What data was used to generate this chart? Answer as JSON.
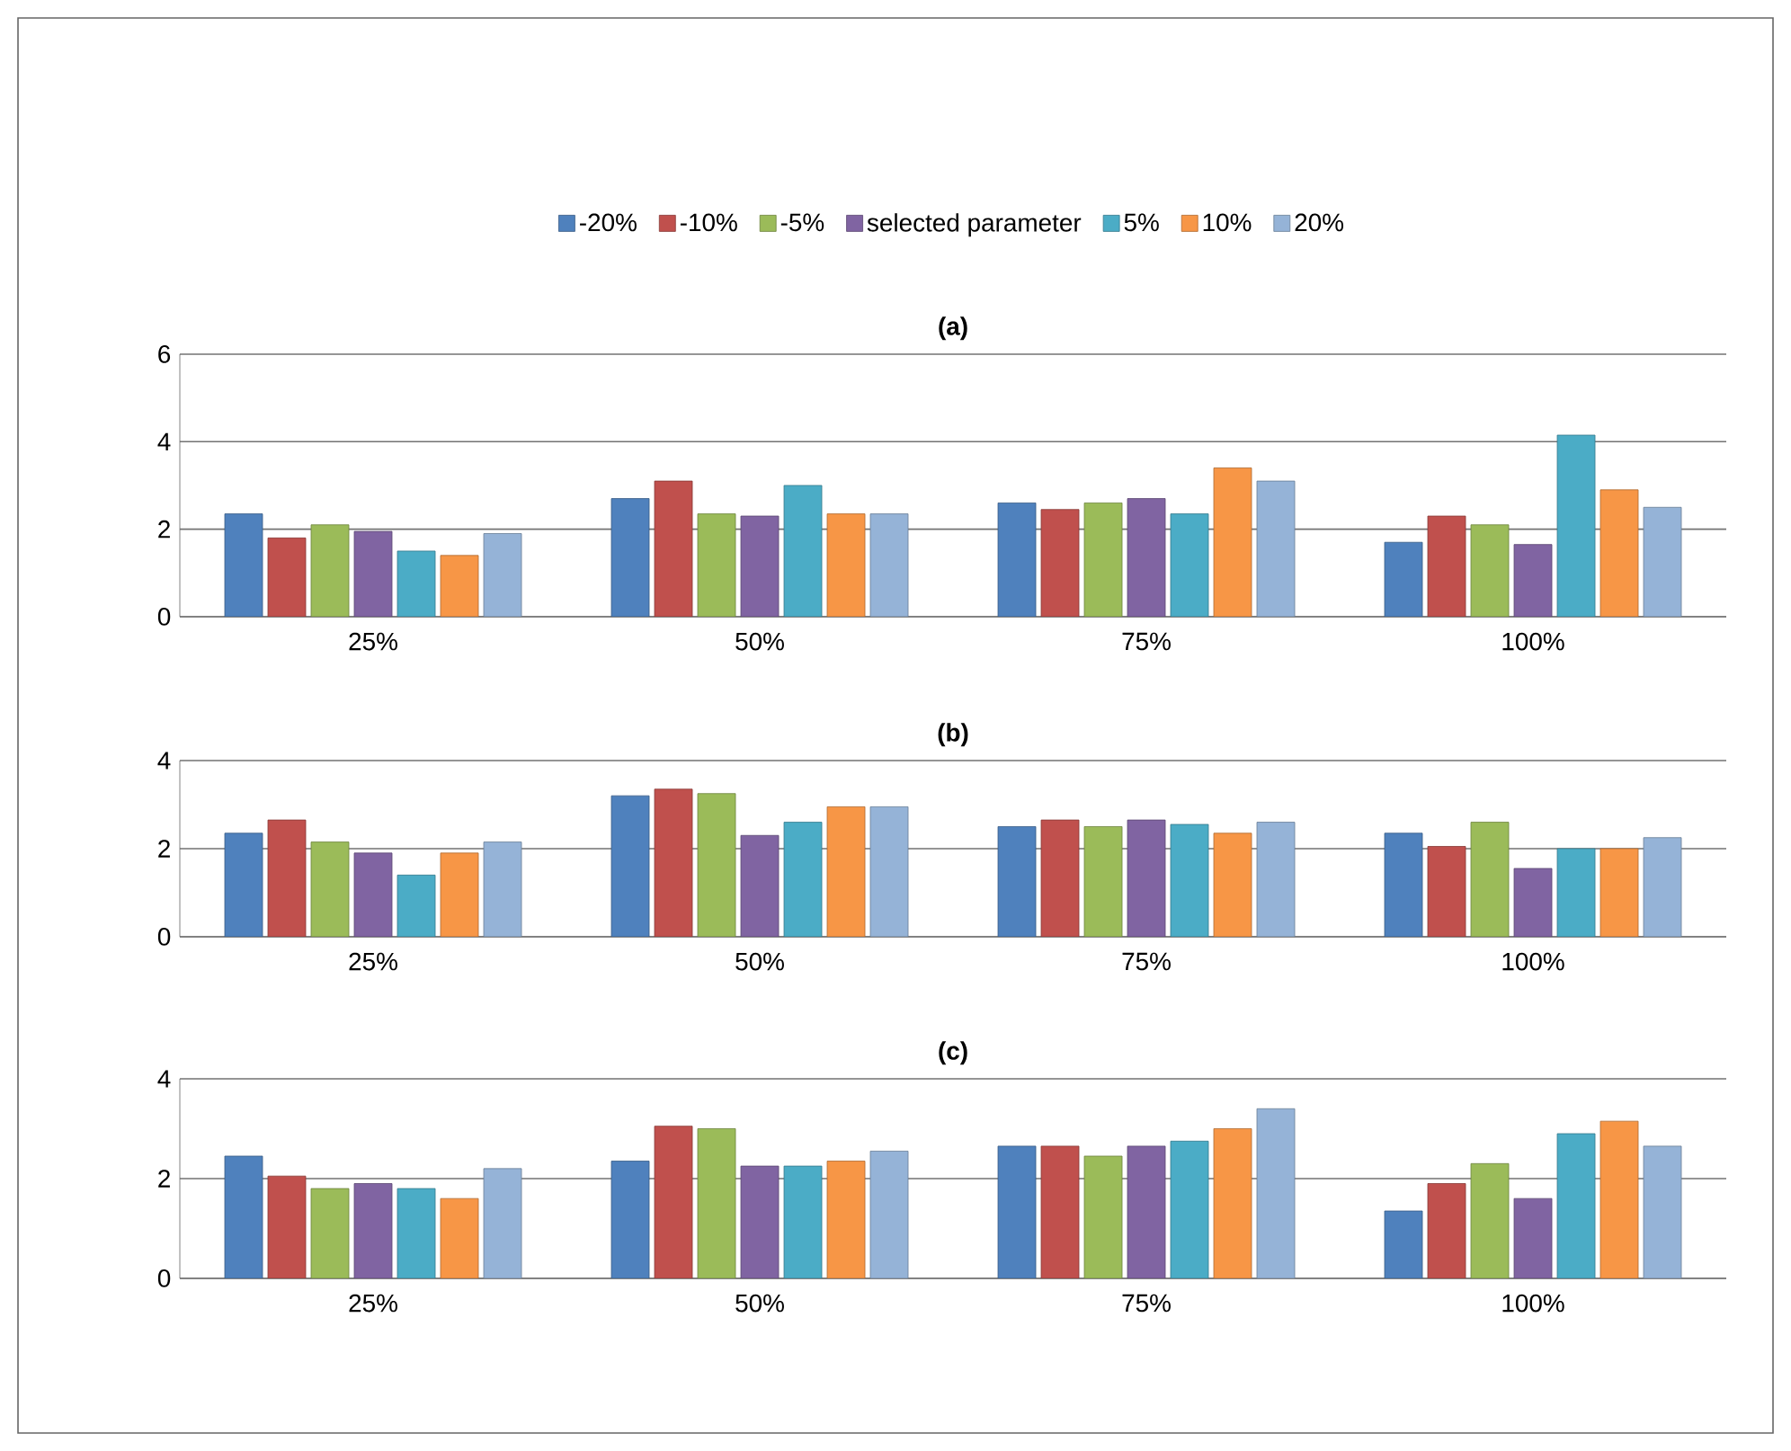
{
  "chart_data": [
    {
      "type": "bar",
      "title": "(a)",
      "categories": [
        "25%",
        "50%",
        "75%",
        "100%"
      ],
      "ylim": [
        0,
        6
      ],
      "yticks": [
        0,
        2,
        4,
        6
      ],
      "grid": "y",
      "legend": "top",
      "series": [
        {
          "name": "-20%",
          "color": "#4f81bd",
          "values": [
            2.35,
            2.7,
            2.6,
            1.7
          ]
        },
        {
          "name": "-10%",
          "color": "#c0504d",
          "values": [
            1.8,
            3.1,
            2.45,
            2.3
          ]
        },
        {
          "name": "-5%",
          "color": "#9bbb59",
          "values": [
            2.1,
            2.35,
            2.6,
            2.1
          ]
        },
        {
          "name": "selected parameter",
          "color": "#8064a2",
          "values": [
            1.95,
            2.3,
            2.7,
            1.65
          ]
        },
        {
          "name": "5%",
          "color": "#4bacc6",
          "values": [
            1.5,
            3.0,
            2.35,
            4.15
          ]
        },
        {
          "name": "10%",
          "color": "#f79646",
          "values": [
            1.4,
            2.35,
            3.4,
            2.9
          ]
        },
        {
          "name": "20%",
          "color": "#95b3d7",
          "values": [
            1.9,
            2.35,
            3.1,
            2.5
          ]
        }
      ]
    },
    {
      "type": "bar",
      "title": "(b)",
      "categories": [
        "25%",
        "50%",
        "75%",
        "100%"
      ],
      "ylim": [
        0,
        4
      ],
      "yticks": [
        0,
        2,
        4
      ],
      "grid": "y",
      "series": [
        {
          "color": "#4f81bd",
          "values": [
            2.35,
            3.2,
            2.5,
            2.35
          ]
        },
        {
          "color": "#c0504d",
          "values": [
            2.65,
            3.35,
            2.65,
            2.05
          ]
        },
        {
          "color": "#9bbb59",
          "values": [
            2.15,
            3.25,
            2.5,
            2.6
          ]
        },
        {
          "color": "#8064a2",
          "values": [
            1.9,
            2.3,
            2.65,
            1.55
          ]
        },
        {
          "color": "#4bacc6",
          "values": [
            1.4,
            2.6,
            2.55,
            2.0
          ]
        },
        {
          "color": "#f79646",
          "values": [
            1.9,
            2.95,
            2.35,
            2.0
          ]
        },
        {
          "color": "#95b3d7",
          "values": [
            2.15,
            2.95,
            2.6,
            2.25
          ]
        }
      ]
    },
    {
      "type": "bar",
      "title": "(c)",
      "categories": [
        "25%",
        "50%",
        "75%",
        "100%"
      ],
      "ylim": [
        0,
        4
      ],
      "yticks": [
        0,
        2,
        4
      ],
      "grid": "y",
      "series": [
        {
          "color": "#4f81bd",
          "values": [
            2.45,
            2.35,
            2.65,
            1.35
          ]
        },
        {
          "color": "#c0504d",
          "values": [
            2.05,
            3.05,
            2.65,
            1.9
          ]
        },
        {
          "color": "#9bbb59",
          "values": [
            1.8,
            3.0,
            2.45,
            2.3
          ]
        },
        {
          "color": "#8064a2",
          "values": [
            1.9,
            2.25,
            2.65,
            1.6
          ]
        },
        {
          "color": "#4bacc6",
          "values": [
            1.8,
            2.25,
            2.75,
            2.9
          ]
        },
        {
          "color": "#f79646",
          "values": [
            1.6,
            2.35,
            3.0,
            3.15
          ]
        },
        {
          "color": "#95b3d7",
          "values": [
            2.2,
            2.55,
            3.4,
            2.65
          ]
        }
      ]
    }
  ]
}
